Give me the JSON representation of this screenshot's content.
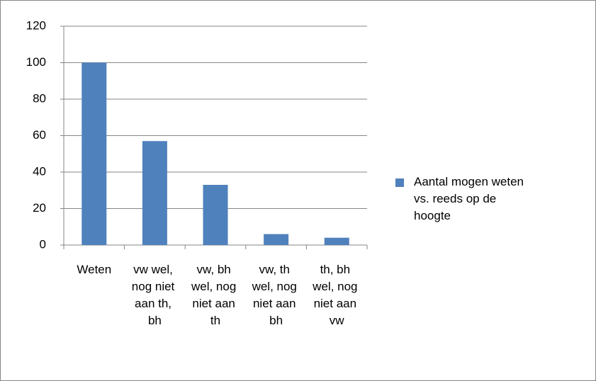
{
  "chart_data": {
    "type": "bar",
    "categories": [
      "Weten",
      "vw wel, nog niet aan th, bh",
      "vw, bh wel, nog niet aan th",
      "vw, th wel, nog niet aan bh",
      "th, bh wel, nog niet aan vw"
    ],
    "series": [
      {
        "name": "Aantal mogen weten vs. reeds op de hoogte",
        "color": "#4f81bd",
        "values": [
          100,
          57,
          33,
          6,
          4
        ]
      }
    ],
    "ylim": [
      0,
      120
    ],
    "yticks": [
      0,
      20,
      40,
      60,
      80,
      100,
      120
    ],
    "grid": true,
    "legend": "right"
  }
}
